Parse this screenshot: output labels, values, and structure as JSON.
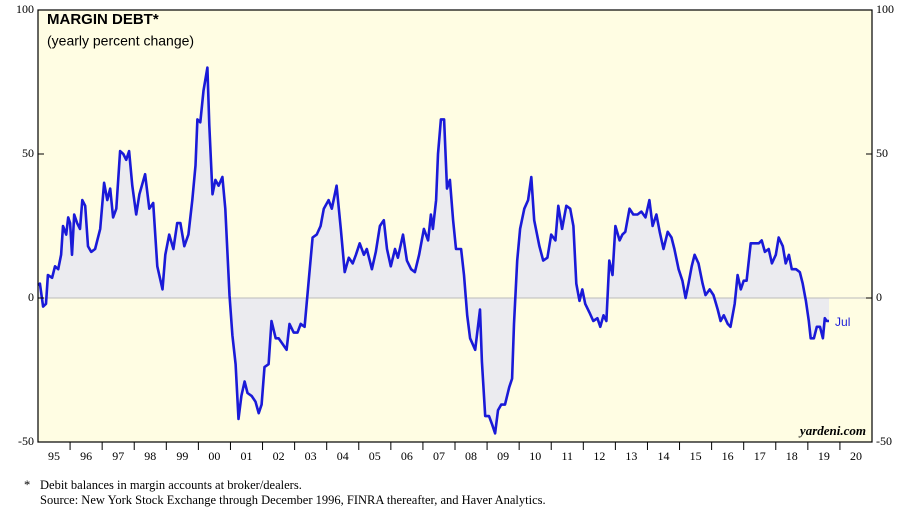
{
  "chart_data": {
    "type": "area-line",
    "title": "MARGIN DEBT*",
    "subtitle": "(yearly percent change)",
    "annotation": "Jul",
    "credit": "yardeni.com",
    "footnote": "Debit balances in margin accounts at broker/dealers.",
    "footnote_marker": "*",
    "source": "Source: New York Stock Exchange through December 1996, FINRA thereafter, and Haver Analytics.",
    "color": "#1a1ad8",
    "fill_color": "#ebebef",
    "background": "#fffde3",
    "xlim": [
      1995,
      2021
    ],
    "ylim": [
      -50,
      100
    ],
    "yticks": [
      -50,
      0,
      50,
      100
    ],
    "xticks": [
      {
        "value": 1995.5,
        "label": "95"
      },
      {
        "value": 1996.5,
        "label": "96"
      },
      {
        "value": 1997.5,
        "label": "97"
      },
      {
        "value": 1998.5,
        "label": "98"
      },
      {
        "value": 1999.5,
        "label": "99"
      },
      {
        "value": 2000.5,
        "label": "00"
      },
      {
        "value": 2001.5,
        "label": "01"
      },
      {
        "value": 2002.5,
        "label": "02"
      },
      {
        "value": 2003.5,
        "label": "03"
      },
      {
        "value": 2004.5,
        "label": "04"
      },
      {
        "value": 2005.5,
        "label": "05"
      },
      {
        "value": 2006.5,
        "label": "06"
      },
      {
        "value": 2007.5,
        "label": "07"
      },
      {
        "value": 2008.5,
        "label": "08"
      },
      {
        "value": 2009.5,
        "label": "09"
      },
      {
        "value": 2010.5,
        "label": "10"
      },
      {
        "value": 2011.5,
        "label": "11"
      },
      {
        "value": 2012.5,
        "label": "12"
      },
      {
        "value": 2013.5,
        "label": "13"
      },
      {
        "value": 2014.5,
        "label": "14"
      },
      {
        "value": 2015.5,
        "label": "15"
      },
      {
        "value": 2016.5,
        "label": "16"
      },
      {
        "value": 2017.5,
        "label": "17"
      },
      {
        "value": 2018.5,
        "label": "18"
      },
      {
        "value": 2019.5,
        "label": "19"
      },
      {
        "value": 2020.5,
        "label": "20"
      }
    ],
    "x": [
      1995.0,
      1995.06,
      1995.16,
      1995.25,
      1995.31,
      1995.44,
      1995.53,
      1995.63,
      1995.72,
      1995.78,
      1995.88,
      1995.94,
      1996.0,
      1996.06,
      1996.13,
      1996.22,
      1996.31,
      1996.38,
      1996.47,
      1996.56,
      1996.66,
      1996.78,
      1996.94,
      1997.06,
      1997.16,
      1997.25,
      1997.34,
      1997.44,
      1997.56,
      1997.66,
      1997.75,
      1997.84,
      1997.94,
      1998.06,
      1998.16,
      1998.34,
      1998.47,
      1998.59,
      1998.72,
      1998.88,
      1998.97,
      1999.09,
      1999.22,
      1999.34,
      1999.44,
      1999.56,
      1999.69,
      1999.81,
      1999.91,
      1999.97,
      2000.06,
      2000.16,
      2000.28,
      2000.34,
      2000.44,
      2000.53,
      2000.63,
      2000.75,
      2000.84,
      2000.97,
      2001.06,
      2001.16,
      2001.25,
      2001.34,
      2001.44,
      2001.53,
      2001.66,
      2001.78,
      2001.88,
      2001.97,
      2002.06,
      2002.19,
      2002.28,
      2002.41,
      2002.5,
      2002.63,
      2002.75,
      2002.84,
      2002.97,
      2003.09,
      2003.19,
      2003.31,
      2003.44,
      2003.56,
      2003.69,
      2003.81,
      2003.91,
      2004.06,
      2004.16,
      2004.31,
      2004.44,
      2004.56,
      2004.69,
      2004.81,
      2004.91,
      2005.03,
      2005.16,
      2005.25,
      2005.41,
      2005.53,
      2005.66,
      2005.78,
      2005.88,
      2006.0,
      2006.13,
      2006.22,
      2006.38,
      2006.5,
      2006.63,
      2006.75,
      2006.88,
      2007.03,
      2007.16,
      2007.25,
      2007.31,
      2007.41,
      2007.47,
      2007.56,
      2007.66,
      2007.75,
      2007.84,
      2007.94,
      2008.03,
      2008.19,
      2008.28,
      2008.38,
      2008.47,
      2008.63,
      2008.78,
      2008.84,
      2008.94,
      2009.06,
      2009.16,
      2009.25,
      2009.34,
      2009.44,
      2009.56,
      2009.69,
      2009.78,
      2009.84,
      2009.94,
      2010.03,
      2010.16,
      2010.28,
      2010.38,
      2010.47,
      2010.63,
      2010.75,
      2010.88,
      2011.0,
      2011.13,
      2011.22,
      2011.34,
      2011.47,
      2011.59,
      2011.69,
      2011.78,
      2011.88,
      2011.97,
      2012.06,
      2012.19,
      2012.31,
      2012.44,
      2012.53,
      2012.63,
      2012.72,
      2012.81,
      2012.91,
      2013.0,
      2013.13,
      2013.22,
      2013.31,
      2013.44,
      2013.56,
      2013.69,
      2013.81,
      2013.94,
      2014.06,
      2014.16,
      2014.28,
      2014.38,
      2014.5,
      2014.63,
      2014.75,
      2014.84,
      2014.97,
      2015.09,
      2015.19,
      2015.28,
      2015.38,
      2015.47,
      2015.59,
      2015.72,
      2015.81,
      2015.94,
      2016.06,
      2016.19,
      2016.28,
      2016.38,
      2016.5,
      2016.59,
      2016.72,
      2016.81,
      2016.91,
      2017.0,
      2017.09,
      2017.22,
      2017.34,
      2017.47,
      2017.56,
      2017.66,
      2017.78,
      2017.88,
      2018.0,
      2018.09,
      2018.22,
      2018.31,
      2018.41,
      2018.5,
      2018.63,
      2018.75,
      2018.84,
      2018.94,
      2019.03,
      2019.09,
      2019.19,
      2019.28,
      2019.38,
      2019.47,
      2019.53,
      2019.59,
      2019.66
    ],
    "values": [
      4.5,
      5,
      -3,
      -2,
      8,
      7,
      11,
      10,
      15,
      25,
      22,
      28,
      26,
      15,
      29,
      26,
      24,
      34,
      32,
      18,
      16,
      17,
      24,
      40,
      34,
      38,
      28,
      31,
      51,
      50,
      48,
      51,
      39,
      29,
      36,
      43,
      31,
      33,
      11,
      3,
      15,
      22,
      17,
      26,
      26,
      18,
      22,
      34,
      46,
      62,
      61,
      72,
      80,
      60,
      36,
      41,
      39,
      42,
      31,
      1,
      -13,
      -23,
      -42,
      -34,
      -29,
      -33,
      -34,
      -36,
      -40,
      -37,
      -24,
      -23,
      -8,
      -14,
      -14,
      -16,
      -18,
      -9,
      -12,
      -12,
      -9,
      -10,
      6,
      21,
      22,
      25,
      31,
      34,
      31,
      39,
      24,
      9,
      14,
      12,
      15,
      19,
      15,
      17,
      10,
      16,
      25,
      27,
      17,
      11,
      17,
      14,
      22,
      13,
      10,
      9,
      15,
      24,
      20,
      29,
      24,
      34,
      50,
      62,
      62,
      38,
      41,
      27,
      17,
      17,
      8,
      -6,
      -14,
      -18,
      -4,
      -22,
      -41,
      -41,
      -44,
      -47,
      -39,
      -37,
      -37,
      -31,
      -28,
      -9,
      13,
      24,
      31,
      34,
      42,
      27,
      18,
      13,
      14,
      22,
      20,
      32,
      24,
      32,
      31,
      25,
      5,
      -1,
      3,
      -2,
      -5,
      -8,
      -7,
      -10,
      -6,
      -8,
      13,
      8,
      25,
      20,
      22,
      23,
      31,
      29,
      29,
      30,
      28,
      34,
      25,
      29,
      23,
      17,
      23,
      21,
      17,
      10,
      6,
      0,
      5,
      11,
      15,
      12,
      5,
      1,
      3,
      1,
      -4,
      -8,
      -6,
      -9,
      -10,
      -2,
      8,
      3,
      6,
      6,
      19,
      19,
      19,
      20,
      16,
      17,
      12,
      15,
      21,
      18,
      12,
      15,
      10,
      10,
      9,
      5,
      -1,
      -8,
      -14,
      -14,
      -10,
      -10,
      -14,
      -7,
      -8,
      -8
    ]
  }
}
